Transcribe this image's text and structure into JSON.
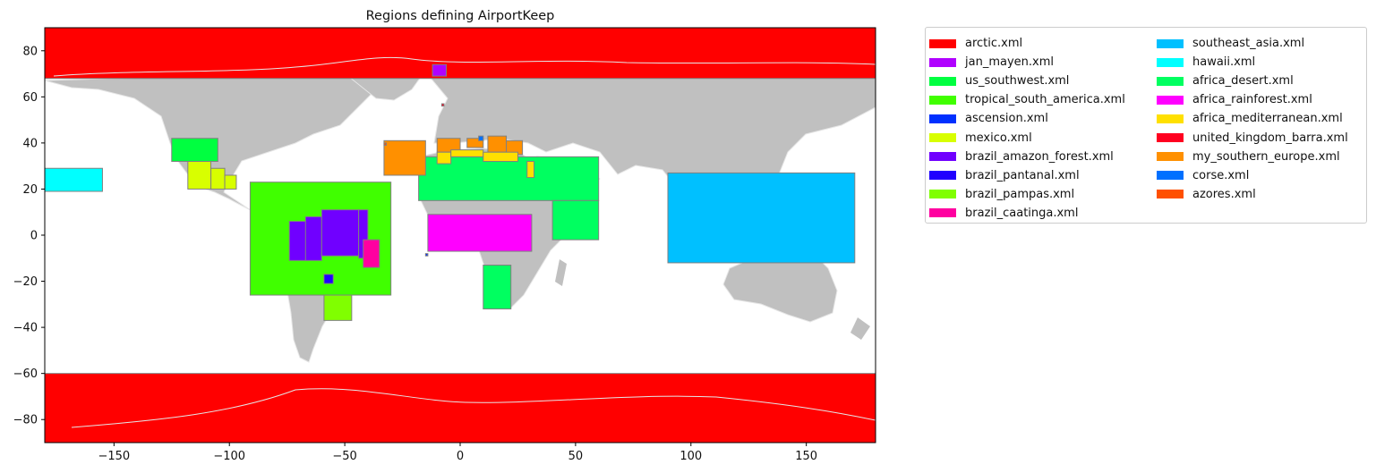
{
  "chart_data": {
    "type": "map",
    "title": "Regions defining AirportKeep",
    "xlim": [
      -180,
      180
    ],
    "ylim": [
      -90,
      90
    ],
    "xticks": [
      -150,
      -100,
      -50,
      0,
      50,
      100,
      150
    ],
    "yticks": [
      -80,
      -60,
      -40,
      -20,
      0,
      20,
      40,
      60,
      80
    ],
    "land_color": "#c0c0c0",
    "coastline_color": "#e6e6e6",
    "edge_color": "#808080",
    "legend": {
      "placement": "outside-right",
      "columns": 2,
      "items": [
        {
          "name": "arctic.xml",
          "color": "#ff0000"
        },
        {
          "name": "jan_mayen.xml",
          "color": "#b000ff"
        },
        {
          "name": "us_southwest.xml",
          "color": "#00ff40"
        },
        {
          "name": "tropical_south_america.xml",
          "color": "#40ff00"
        },
        {
          "name": "ascension.xml",
          "color": "#0030ff"
        },
        {
          "name": "mexico.xml",
          "color": "#d8ff00"
        },
        {
          "name": "brazil_amazon_forest.xml",
          "color": "#7000ff"
        },
        {
          "name": "brazil_pantanal.xml",
          "color": "#2000ff"
        },
        {
          "name": "brazil_pampas.xml",
          "color": "#80ff00"
        },
        {
          "name": "brazil_caatinga.xml",
          "color": "#ff00a0"
        },
        {
          "name": "southeast_asia.xml",
          "color": "#00c0ff"
        },
        {
          "name": "hawaii.xml",
          "color": "#00ffff"
        },
        {
          "name": "africa_desert.xml",
          "color": "#00ff60"
        },
        {
          "name": "africa_rainforest.xml",
          "color": "#ff00ff"
        },
        {
          "name": "africa_mediterranean.xml",
          "color": "#ffe000"
        },
        {
          "name": "united_kingdom_barra.xml",
          "color": "#ff0020"
        },
        {
          "name": "my_southern_europe.xml",
          "color": "#ff9000"
        },
        {
          "name": "corse.xml",
          "color": "#0070ff"
        },
        {
          "name": "azores.xml",
          "color": "#ff5000"
        }
      ]
    },
    "regions": [
      {
        "name": "arctic.xml",
        "color": "#ff0000",
        "lon": [
          -180,
          180
        ],
        "lat": [
          68,
          90
        ]
      },
      {
        "name": "arctic.xml",
        "color": "#ff0000",
        "lon": [
          -180,
          180
        ],
        "lat": [
          -90,
          -60
        ]
      },
      {
        "name": "tropical_south_america.xml",
        "color": "#40ff00",
        "lon": [
          -91,
          -30
        ],
        "lat": [
          -26,
          23
        ]
      },
      {
        "name": "brazil_pampas.xml",
        "color": "#80ff00",
        "lon": [
          -59,
          -47
        ],
        "lat": [
          -37,
          -26
        ]
      },
      {
        "name": "brazil_amazon_forest.xml",
        "color": "#7000ff",
        "lon": [
          -74,
          -66
        ],
        "lat": [
          -11,
          6
        ]
      },
      {
        "name": "brazil_amazon_forest.xml",
        "color": "#7000ff",
        "lon": [
          -67,
          -60
        ],
        "lat": [
          -11,
          8
        ]
      },
      {
        "name": "brazil_amazon_forest.xml",
        "color": "#7000ff",
        "lon": [
          -60,
          -44
        ],
        "lat": [
          -9,
          11
        ]
      },
      {
        "name": "brazil_amazon_forest.xml",
        "color": "#7000ff",
        "lon": [
          -44,
          -40
        ],
        "lat": [
          -10,
          11
        ]
      },
      {
        "name": "brazil_caatinga.xml",
        "color": "#ff00a0",
        "lon": [
          -42,
          -35
        ],
        "lat": [
          -14,
          -2
        ]
      },
      {
        "name": "brazil_pantanal.xml",
        "color": "#2000ff",
        "lon": [
          -59,
          -55
        ],
        "lat": [
          -21,
          -17
        ]
      },
      {
        "name": "us_southwest.xml",
        "color": "#00ff40",
        "lon": [
          -125,
          -105
        ],
        "lat": [
          32,
          42
        ]
      },
      {
        "name": "mexico.xml",
        "color": "#d8ff00",
        "lon": [
          -118,
          -108
        ],
        "lat": [
          20,
          32
        ]
      },
      {
        "name": "mexico.xml",
        "color": "#d8ff00",
        "lon": [
          -108,
          -102
        ],
        "lat": [
          20,
          29
        ]
      },
      {
        "name": "mexico.xml",
        "color": "#d8ff00",
        "lon": [
          -102,
          -97
        ],
        "lat": [
          20,
          26
        ]
      },
      {
        "name": "hawaii.xml",
        "color": "#00ffff",
        "lon": [
          -180,
          -155
        ],
        "lat": [
          19,
          29
        ]
      },
      {
        "name": "jan_mayen.xml",
        "color": "#b000ff",
        "lon": [
          -12,
          -6
        ],
        "lat": [
          69,
          74
        ]
      },
      {
        "name": "africa_desert.xml",
        "color": "#00ff60",
        "lon": [
          -18,
          60
        ],
        "lat": [
          15,
          34
        ]
      },
      {
        "name": "africa_desert.xml",
        "color": "#00ff60",
        "lon": [
          40,
          60
        ],
        "lat": [
          -2,
          15
        ]
      },
      {
        "name": "africa_desert.xml",
        "color": "#00ff60",
        "lon": [
          10,
          22
        ],
        "lat": [
          -32,
          -13
        ]
      },
      {
        "name": "africa_rainforest.xml",
        "color": "#ff00ff",
        "lon": [
          -14,
          31
        ],
        "lat": [
          -7,
          9
        ]
      },
      {
        "name": "ascension.xml",
        "color": "#0030ff",
        "lon": [
          -15,
          -14
        ],
        "lat": [
          -9,
          -8
        ]
      },
      {
        "name": "southeast_asia.xml",
        "color": "#00c0ff",
        "lon": [
          90,
          171
        ],
        "lat": [
          -12,
          27
        ]
      },
      {
        "name": "my_southern_europe.xml",
        "color": "#ff9000",
        "lon": [
          -33,
          -15
        ],
        "lat": [
          26,
          41
        ]
      },
      {
        "name": "azores.xml",
        "color": "#ff5000",
        "lon": [
          -33,
          -32
        ],
        "lat": [
          39,
          40
        ]
      },
      {
        "name": "my_southern_europe.xml",
        "color": "#ff9000",
        "lon": [
          -10,
          0
        ],
        "lat": [
          36,
          42
        ]
      },
      {
        "name": "my_southern_europe.xml",
        "color": "#ff9000",
        "lon": [
          3,
          10
        ],
        "lat": [
          38,
          42
        ]
      },
      {
        "name": "my_southern_europe.xml",
        "color": "#ff9000",
        "lon": [
          12,
          20
        ],
        "lat": [
          36,
          43
        ]
      },
      {
        "name": "my_southern_europe.xml",
        "color": "#ff9000",
        "lon": [
          20,
          27
        ],
        "lat": [
          35,
          41
        ]
      },
      {
        "name": "corse.xml",
        "color": "#0070ff",
        "lon": [
          8,
          10
        ],
        "lat": [
          41,
          43
        ]
      },
      {
        "name": "africa_mediterranean.xml",
        "color": "#ffe000",
        "lon": [
          -10,
          -4
        ],
        "lat": [
          31,
          36
        ]
      },
      {
        "name": "africa_mediterranean.xml",
        "color": "#ffe000",
        "lon": [
          -4,
          10
        ],
        "lat": [
          34,
          37
        ]
      },
      {
        "name": "africa_mediterranean.xml",
        "color": "#ffe000",
        "lon": [
          10,
          25
        ],
        "lat": [
          32,
          36
        ]
      },
      {
        "name": "africa_mediterranean.xml",
        "color": "#ffe000",
        "lon": [
          29,
          32
        ],
        "lat": [
          25,
          32
        ]
      },
      {
        "name": "united_kingdom_barra.xml",
        "color": "#ff0020",
        "lon": [
          -8,
          -7
        ],
        "lat": [
          56,
          57
        ]
      }
    ]
  }
}
